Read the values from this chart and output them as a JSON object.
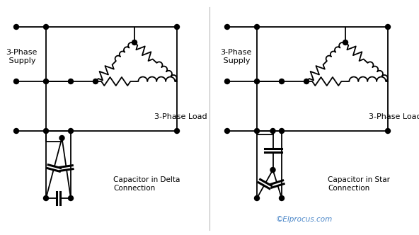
{
  "bg_color": "#ffffff",
  "line_color": "#000000",
  "text_color": "#000000",
  "copyright_color": "#4a86c8",
  "figsize": [
    5.92,
    3.32
  ],
  "dpi": 100,
  "left_label": "3-Phase\n Supply",
  "right_label": "3-Phase\n Supply",
  "load_label": "3-Phase Load",
  "delta_label": "Capacitor in Delta\nConnection",
  "star_label": "Capacitor in Star\nConnection",
  "copyright": "©Elprocus.com"
}
